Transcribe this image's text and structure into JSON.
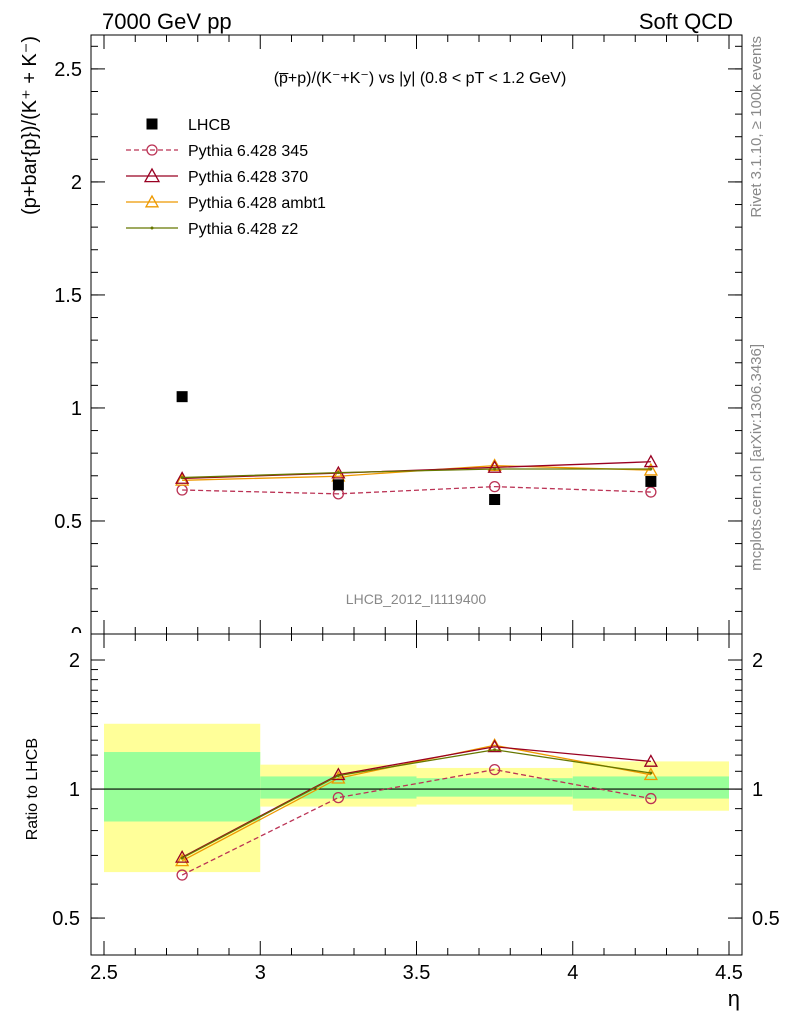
{
  "header": {
    "left": "7000 GeV pp",
    "right": "Soft QCD"
  },
  "side_labels": {
    "rivet": "Rivet 3.1.10, ≥ 100k events",
    "mcplots": "mcplots.cern.ch [arXiv:1306.3436]"
  },
  "watermark": "LHCB_2012_I1119400",
  "colors": {
    "data": "#000000",
    "p345": "#bb3355",
    "p370": "#990022",
    "ambt1": "#ee9900",
    "z2": "#667700",
    "band_inner": "#99ff99",
    "band_outer": "#ffff99"
  },
  "chart_data": [
    {
      "type": "scatter",
      "panel": "main",
      "title": "(p̅+p)/(K⁻+K⁻) vs |y| (0.8 < pT < 1.2 GeV)",
      "ylabel": "(p+bar{p})/(K⁺ + K⁻)",
      "xlim": [
        2.5,
        4.5
      ],
      "ylim": [
        0,
        2.65
      ],
      "yticks": [
        0.5,
        1,
        1.5,
        2,
        2.5
      ],
      "ytick_labels": [
        "0.5",
        "1",
        "1.5",
        "2",
        "2.5"
      ],
      "legend_position": "top-left",
      "x": [
        2.75,
        3.25,
        3.75,
        4.25
      ],
      "series": [
        {
          "name": "LHCB",
          "key": "data",
          "values": [
            1.05,
            0.66,
            0.595,
            0.675
          ]
        },
        {
          "name": "Pythia 6.428 345",
          "key": "p345",
          "values": [
            0.637,
            0.62,
            0.652,
            0.628
          ]
        },
        {
          "name": "Pythia 6.428 370",
          "key": "p370",
          "values": [
            0.688,
            0.712,
            0.737,
            0.762
          ]
        },
        {
          "name": "Pythia 6.428 ambt1",
          "key": "ambt1",
          "values": [
            0.68,
            0.698,
            0.745,
            0.725
          ]
        },
        {
          "name": "Pythia 6.428 z2",
          "key": "z2",
          "values": [
            0.692,
            0.714,
            0.73,
            0.73
          ]
        }
      ]
    },
    {
      "type": "line",
      "panel": "ratio",
      "ylabel": "Ratio to LHCB",
      "xlabel": "η",
      "xlim": [
        2.5,
        4.5
      ],
      "ylim": [
        0.41,
        2.3
      ],
      "log_y": true,
      "xticks": [
        2.5,
        3,
        3.5,
        4,
        4.5
      ],
      "xtick_labels": [
        "2.5",
        "3",
        "3.5",
        "4",
        "4.5"
      ],
      "yticks": [
        0.5,
        1,
        2
      ],
      "ytick_labels": [
        "0.5",
        "1",
        "2"
      ],
      "x": [
        2.75,
        3.25,
        3.75,
        4.25
      ],
      "bins": [
        [
          2.5,
          3.0
        ],
        [
          3.0,
          3.5
        ],
        [
          3.5,
          4.0
        ],
        [
          4.0,
          4.5
        ]
      ],
      "band_inner": [
        [
          0.84,
          1.22
        ],
        [
          0.95,
          1.07
        ],
        [
          0.96,
          1.06
        ],
        [
          0.95,
          1.07
        ]
      ],
      "band_outer": [
        [
          0.64,
          1.42
        ],
        [
          0.91,
          1.14
        ],
        [
          0.92,
          1.12
        ],
        [
          0.89,
          1.16
        ]
      ],
      "series": [
        {
          "name": "Pythia 6.428 345",
          "key": "p345",
          "values": [
            0.63,
            0.955,
            1.11,
            0.95
          ]
        },
        {
          "name": "Pythia 6.428 370",
          "key": "p370",
          "values": [
            0.693,
            1.08,
            1.255,
            1.16
          ]
        },
        {
          "name": "Pythia 6.428 ambt1",
          "key": "ambt1",
          "values": [
            0.68,
            1.06,
            1.265,
            1.08
          ]
        },
        {
          "name": "Pythia 6.428 z2",
          "key": "z2",
          "values": [
            0.69,
            1.075,
            1.235,
            1.09
          ]
        }
      ]
    }
  ]
}
